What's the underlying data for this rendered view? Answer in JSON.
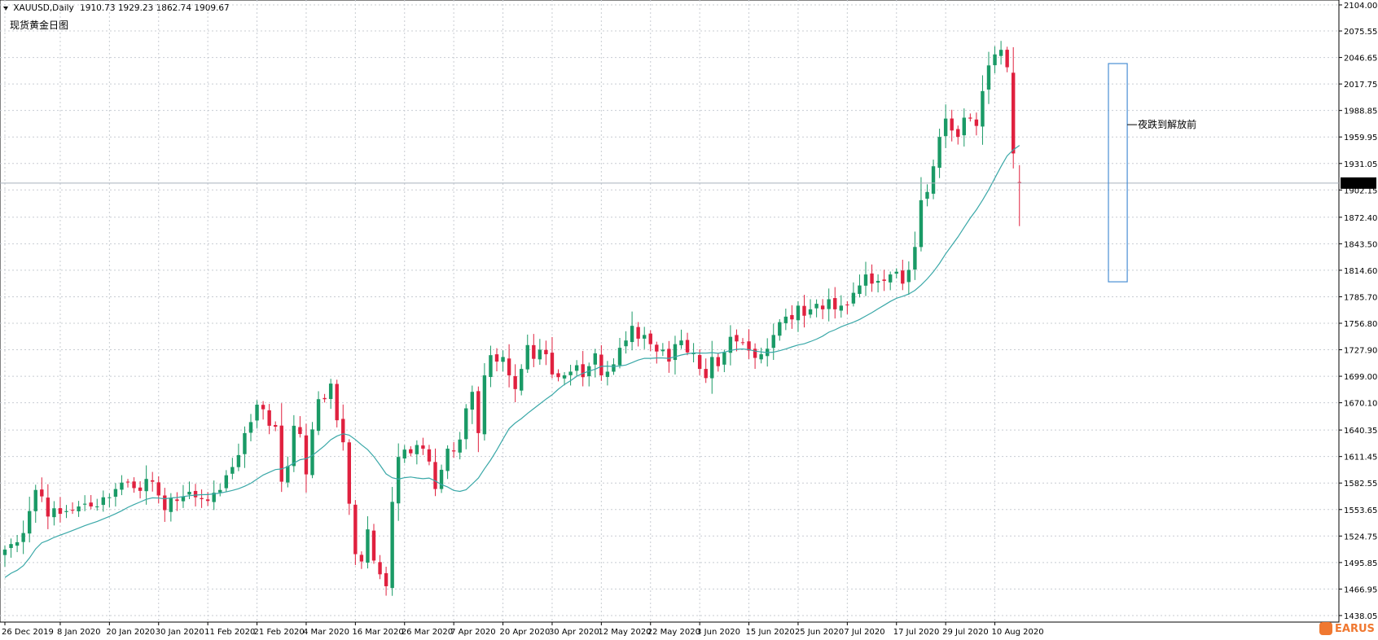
{
  "header": {
    "symbol": "XAUUSD,Daily",
    "ohlc": "1910.73 1929.23 1862.74 1909.67",
    "chart_title": "现货黄金日图"
  },
  "colors": {
    "bull": "#1a9a66",
    "bear": "#e0213f",
    "ma": "#3aa8a8",
    "grid": "#c8ccd2",
    "box": "#4a8fd4",
    "price_line": "#a8b0bc",
    "label_bg": "#000000",
    "label_fg": "#ffffff"
  },
  "annotation": {
    "text": "夜跌到解放前"
  },
  "watermark": {
    "text": "EARUS",
    "icon": "logo-icon"
  },
  "chart_data": {
    "type": "candlestick",
    "timeframe": "Daily",
    "ylim": [
      1438.0,
      2104.0
    ],
    "current_price": 1909.67,
    "y_ticks": [
      2104.0,
      2075.55,
      2046.65,
      2017.75,
      1988.85,
      1959.95,
      1931.05,
      1902.15,
      1872.4,
      1843.5,
      1814.6,
      1785.7,
      1756.8,
      1727.9,
      1699.0,
      1670.1,
      1640.35,
      1611.45,
      1582.55,
      1553.65,
      1524.75,
      1495.85,
      1466.95,
      1438.05
    ],
    "x_ticks": [
      {
        "label": "26 Dec 2019",
        "index": 0
      },
      {
        "label": "8 Jan 2020",
        "index": 9
      },
      {
        "label": "20 Jan 2020",
        "index": 17
      },
      {
        "label": "30 Jan 2020",
        "index": 25
      },
      {
        "label": "11 Feb 2020",
        "index": 33
      },
      {
        "label": "21 Feb 2020",
        "index": 41
      },
      {
        "label": "4 Mar 2020",
        "index": 49
      },
      {
        "label": "16 Mar 2020",
        "index": 57
      },
      {
        "label": "26 Mar 2020",
        "index": 65
      },
      {
        "label": "7 Apr 2020",
        "index": 73
      },
      {
        "label": "20 Apr 2020",
        "index": 81
      },
      {
        "label": "30 Apr 2020",
        "index": 89
      },
      {
        "label": "12 May 2020",
        "index": 97
      },
      {
        "label": "22 May 2020",
        "index": 105
      },
      {
        "label": "3 Jun 2020",
        "index": 113
      },
      {
        "label": "15 Jun 2020",
        "index": 121
      },
      {
        "label": "25 Jun 2020",
        "index": 129
      },
      {
        "label": "7 Jul 2020",
        "index": 137
      },
      {
        "label": "17 Jul 2020",
        "index": 145
      },
      {
        "label": "29 Jul 2020",
        "index": 153
      },
      {
        "label": "10 Aug 2020",
        "index": 161
      }
    ],
    "close": [
      1510,
      1516,
      1518,
      1528,
      1552,
      1575,
      1568,
      1546,
      1555,
      1549,
      1552,
      1553,
      1557,
      1560,
      1557,
      1557,
      1567,
      1567,
      1576,
      1583,
      1584,
      1577,
      1574,
      1587,
      1584,
      1569,
      1553,
      1566,
      1563,
      1568,
      1573,
      1567,
      1565,
      1563,
      1572,
      1575,
      1591,
      1600,
      1613,
      1637,
      1649,
      1668,
      1663,
      1645,
      1644,
      1584,
      1601,
      1645,
      1636,
      1592,
      1641,
      1674,
      1674,
      1691,
      1651,
      1627,
      1560,
      1505,
      1497,
      1532,
      1498,
      1483,
      1470,
      1562,
      1611,
      1619,
      1615,
      1624,
      1620,
      1606,
      1576,
      1597,
      1620,
      1617,
      1630,
      1664,
      1682,
      1637,
      1700,
      1722,
      1715,
      1720,
      1700,
      1685,
      1707,
      1733,
      1718,
      1728,
      1723,
      1701,
      1698,
      1700,
      1704,
      1711,
      1698,
      1710,
      1724,
      1700,
      1704,
      1712,
      1730,
      1738,
      1754,
      1740,
      1744,
      1734,
      1726,
      1728,
      1715,
      1734,
      1738,
      1725,
      1724,
      1707,
      1697,
      1720,
      1710,
      1725,
      1742,
      1737,
      1736,
      1727,
      1719,
      1723,
      1729,
      1744,
      1758,
      1764,
      1761,
      1776,
      1765,
      1772,
      1778,
      1772,
      1783,
      1772,
      1776,
      1777,
      1790,
      1798,
      1810,
      1800,
      1803,
      1803,
      1810,
      1813,
      1800,
      1815,
      1840,
      1891,
      1900,
      1928,
      1960,
      1980,
      1967,
      1960,
      1981,
      1980,
      1972,
      2010,
      2038,
      2050,
      2055,
      2036,
      1942,
      1910
    ],
    "ohlc_last": {
      "open": 1910.73,
      "high": 1929.23,
      "low": 1862.74,
      "close": 1909.67
    },
    "series": [
      {
        "name": "",
        "style": "moving-average"
      }
    ],
    "highlight_box": {
      "from_index": 180,
      "to_index": 182,
      "y_top": 2040,
      "y_bottom": 1802
    }
  }
}
